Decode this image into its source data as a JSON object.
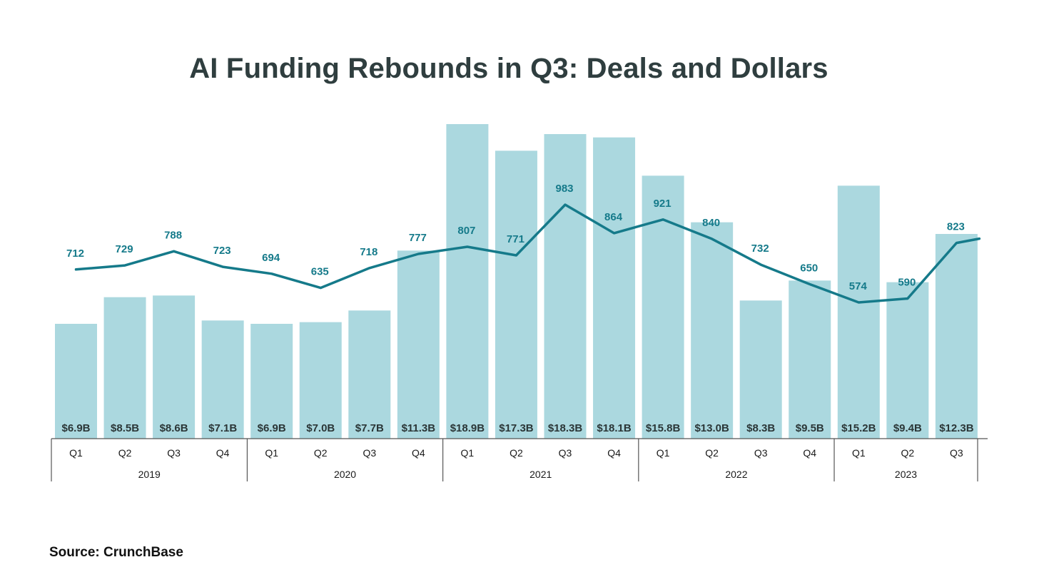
{
  "chart_data": {
    "type": "bar",
    "title": "AI Funding Rebounds in Q3: Deals and Dollars",
    "source": "Source: CrunchBase",
    "years": [
      "2019",
      "2020",
      "2021",
      "2022",
      "2023"
    ],
    "categories": [
      "Q1",
      "Q2",
      "Q3",
      "Q4",
      "Q1",
      "Q2",
      "Q3",
      "Q4",
      "Q1",
      "Q2",
      "Q3",
      "Q4",
      "Q1",
      "Q2",
      "Q3",
      "Q4",
      "Q1",
      "Q2",
      "Q3"
    ],
    "year_of_category": [
      "2019",
      "2019",
      "2019",
      "2019",
      "2020",
      "2020",
      "2020",
      "2020",
      "2021",
      "2021",
      "2021",
      "2021",
      "2022",
      "2022",
      "2022",
      "2022",
      "2023",
      "2023",
      "2023"
    ],
    "series": [
      {
        "type": "bar",
        "unit": "billion USD",
        "values": [
          6.9,
          8.5,
          8.6,
          7.1,
          6.9,
          7.0,
          7.7,
          11.3,
          18.9,
          17.3,
          18.3,
          18.1,
          15.8,
          13.0,
          8.3,
          9.5,
          15.2,
          9.4,
          12.3
        ],
        "labels": [
          "$6.9B",
          "$8.5B",
          "$8.6B",
          "$7.1B",
          "$6.9B",
          "$7.0B",
          "$7.7B",
          "$11.3B",
          "$18.9B",
          "$17.3B",
          "$18.3B",
          "$18.1B",
          "$15.8B",
          "$13.0B",
          "$8.3B",
          "$9.5B",
          "$15.2B",
          "$9.4B",
          "$12.3B"
        ]
      },
      {
        "type": "line",
        "unit": "deals",
        "values": [
          712,
          729,
          788,
          723,
          694,
          635,
          718,
          777,
          807,
          771,
          983,
          864,
          921,
          840,
          732,
          650,
          574,
          590,
          823
        ],
        "labels": [
          "712",
          "729",
          "788",
          "723",
          "694",
          "635",
          "718",
          "777",
          "807",
          "771",
          "983",
          "864",
          "921",
          "840",
          "732",
          "650",
          "574",
          "590",
          "823"
        ]
      }
    ],
    "bar_ylim": [
      0,
      19.5
    ],
    "line_ylim": [
      0,
      1300
    ],
    "grid": false,
    "legend": "none",
    "colors": {
      "bar": "#abd8df",
      "line": "#157a8a",
      "title": "#2f3e3f",
      "axis": "#555555"
    }
  }
}
